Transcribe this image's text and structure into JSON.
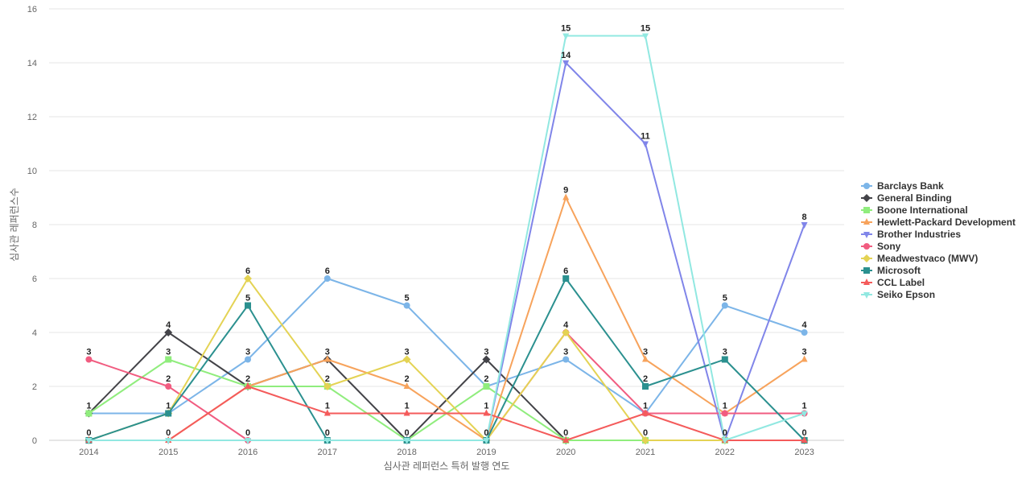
{
  "chart_data": {
    "type": "line",
    "xlabel": "심사관 레퍼런스 특허 발행 연도",
    "ylabel": "심사관 레퍼런스수",
    "x": [
      "2014",
      "2015",
      "2016",
      "2017",
      "2018",
      "2019",
      "2020",
      "2021",
      "2022",
      "2023"
    ],
    "ylim": [
      0,
      16
    ],
    "yticks": [
      0,
      2,
      4,
      6,
      8,
      10,
      12,
      14,
      16
    ],
    "grid": true,
    "legend_position": "right",
    "series": [
      {
        "name": "Barclays Bank",
        "color": "#7cb5e8",
        "marker": "circle",
        "values": [
          1,
          1,
          3,
          6,
          5,
          2,
          3,
          1,
          5,
          4
        ]
      },
      {
        "name": "General Binding",
        "color": "#434348",
        "marker": "diamond",
        "values": [
          1,
          4,
          2,
          3,
          0,
          3,
          0,
          0,
          0,
          0
        ]
      },
      {
        "name": "Boone International",
        "color": "#90ed7d",
        "marker": "square",
        "values": [
          1,
          3,
          2,
          2,
          0,
          2,
          0,
          0,
          0,
          0
        ]
      },
      {
        "name": "Hewlett-Packard Development",
        "color": "#f7a35c",
        "marker": "triangle",
        "values": [
          0,
          0,
          2,
          3,
          2,
          0,
          9,
          3,
          1,
          3
        ]
      },
      {
        "name": "Brother Industries",
        "color": "#8085e9",
        "marker": "triangle-down",
        "values": [
          0,
          0,
          0,
          0,
          0,
          0,
          14,
          11,
          0,
          8
        ]
      },
      {
        "name": "Sony",
        "color": "#f15c80",
        "marker": "circle",
        "values": [
          3,
          2,
          0,
          0,
          0,
          0,
          4,
          1,
          1,
          1
        ]
      },
      {
        "name": "Meadwestvaco (MWV)",
        "color": "#e4d354",
        "marker": "diamond",
        "values": [
          0,
          1,
          6,
          2,
          3,
          0,
          4,
          0,
          0,
          0
        ]
      },
      {
        "name": "Microsoft",
        "color": "#2b908f",
        "marker": "square",
        "values": [
          0,
          1,
          5,
          0,
          0,
          0,
          6,
          2,
          3,
          0
        ]
      },
      {
        "name": "CCL Label",
        "color": "#f45b5b",
        "marker": "triangle",
        "values": [
          0,
          0,
          2,
          1,
          1,
          1,
          0,
          1,
          0,
          0
        ]
      },
      {
        "name": "Seiko Epson",
        "color": "#91e8e1",
        "marker": "triangle-down",
        "values": [
          0,
          0,
          0,
          0,
          0,
          0,
          15,
          15,
          0,
          1
        ]
      }
    ],
    "data_labels": [
      {
        "x": "2014",
        "text": "3",
        "value": 3
      },
      {
        "x": "2014",
        "text": "1",
        "value": 1
      },
      {
        "x": "2014",
        "text": "0",
        "value": 0
      },
      {
        "x": "2015",
        "text": "4",
        "value": 4
      },
      {
        "x": "2015",
        "text": "3",
        "value": 3
      },
      {
        "x": "2015",
        "text": "2",
        "value": 2
      },
      {
        "x": "2015",
        "text": "1",
        "value": 1
      },
      {
        "x": "2015",
        "text": "0",
        "value": 0
      },
      {
        "x": "2016",
        "text": "6",
        "value": 6
      },
      {
        "x": "2016",
        "text": "5",
        "value": 5
      },
      {
        "x": "2016",
        "text": "3",
        "value": 3
      },
      {
        "x": "2016",
        "text": "2",
        "value": 2
      },
      {
        "x": "2016",
        "text": "0",
        "value": 0
      },
      {
        "x": "2017",
        "text": "6",
        "value": 6
      },
      {
        "x": "2017",
        "text": "3",
        "value": 3
      },
      {
        "x": "2017",
        "text": "2",
        "value": 2
      },
      {
        "x": "2017",
        "text": "1",
        "value": 1
      },
      {
        "x": "2017",
        "text": "0",
        "value": 0
      },
      {
        "x": "2018",
        "text": "5",
        "value": 5
      },
      {
        "x": "2018",
        "text": "3",
        "value": 3
      },
      {
        "x": "2018",
        "text": "2",
        "value": 2
      },
      {
        "x": "2018",
        "text": "1",
        "value": 1
      },
      {
        "x": "2018",
        "text": "0",
        "value": 0
      },
      {
        "x": "2019",
        "text": "3",
        "value": 3
      },
      {
        "x": "2019",
        "text": "2",
        "value": 2
      },
      {
        "x": "2019",
        "text": "1",
        "value": 1
      },
      {
        "x": "2019",
        "text": "0",
        "value": 0
      },
      {
        "x": "2020",
        "text": "15",
        "value": 15
      },
      {
        "x": "2020",
        "text": "14",
        "value": 14
      },
      {
        "x": "2020",
        "text": "9",
        "value": 9
      },
      {
        "x": "2020",
        "text": "6",
        "value": 6
      },
      {
        "x": "2020",
        "text": "4",
        "value": 4
      },
      {
        "x": "2020",
        "text": "3",
        "value": 3
      },
      {
        "x": "2020",
        "text": "0",
        "value": 0
      },
      {
        "x": "2021",
        "text": "15",
        "value": 15
      },
      {
        "x": "2021",
        "text": "11",
        "value": 11
      },
      {
        "x": "2021",
        "text": "3",
        "value": 3
      },
      {
        "x": "2021",
        "text": "2",
        "value": 2
      },
      {
        "x": "2021",
        "text": "1",
        "value": 1
      },
      {
        "x": "2021",
        "text": "0",
        "value": 0
      },
      {
        "x": "2022",
        "text": "5",
        "value": 5
      },
      {
        "x": "2022",
        "text": "3",
        "value": 3
      },
      {
        "x": "2022",
        "text": "1",
        "value": 1
      },
      {
        "x": "2022",
        "text": "0",
        "value": 0
      },
      {
        "x": "2023",
        "text": "8",
        "value": 8
      },
      {
        "x": "2023",
        "text": "4",
        "value": 4
      },
      {
        "x": "2023",
        "text": "3",
        "value": 3
      },
      {
        "x": "2023",
        "text": "1",
        "value": 1
      },
      {
        "x": "2023",
        "text": "0",
        "value": 0
      }
    ]
  }
}
